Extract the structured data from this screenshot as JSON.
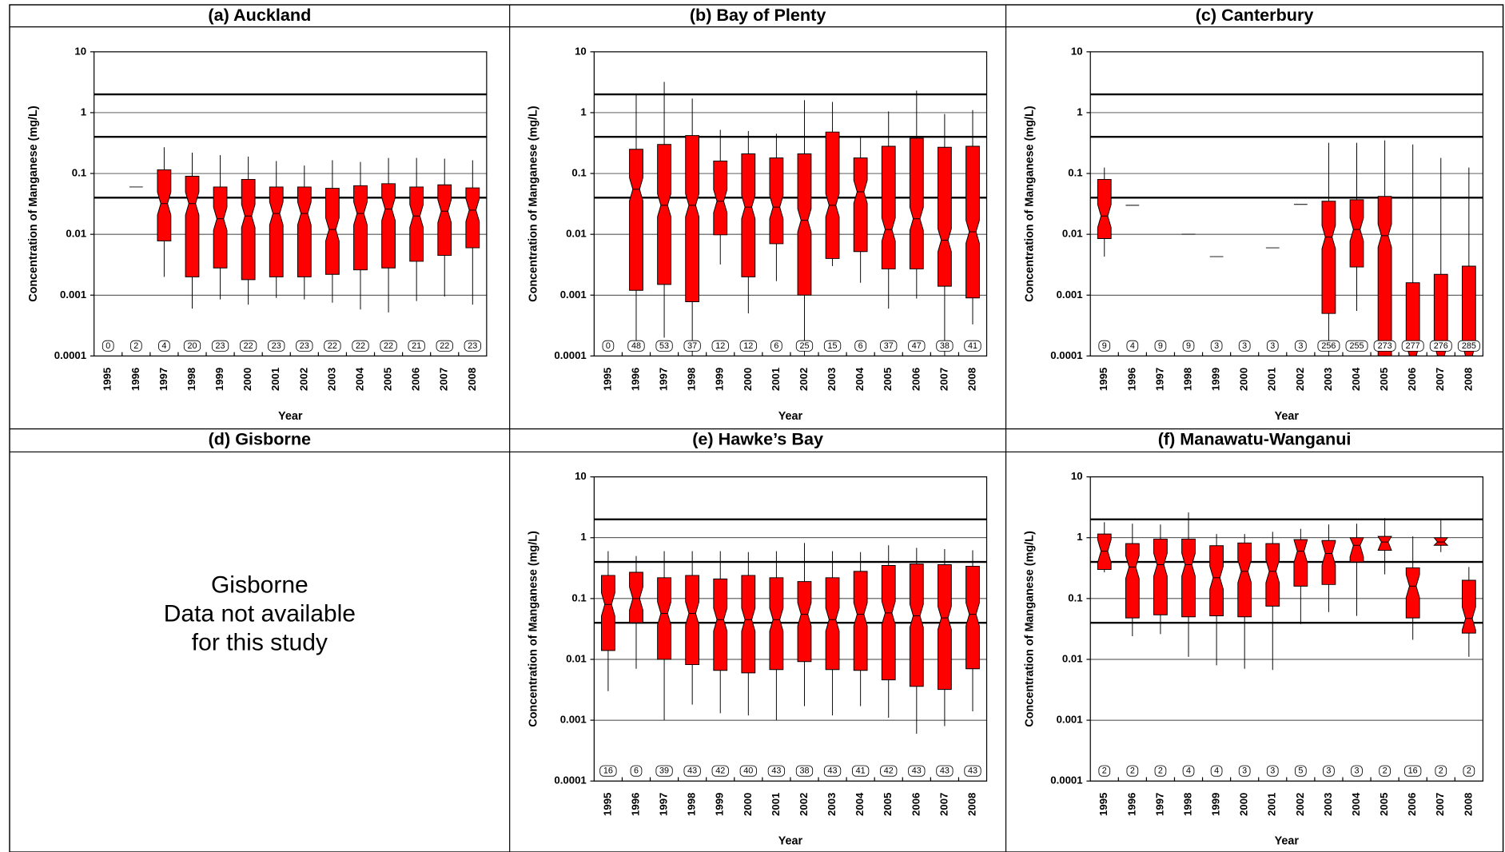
{
  "chart_data": [
    {
      "type": "box",
      "title": "(a) Auckland",
      "xlabel": "Year",
      "ylabel": "Concentration of Manganese (mg/L)",
      "log_y": true,
      "grid": true,
      "color": "#ff0000",
      "ylim": [
        0.0001,
        10
      ],
      "yticks": [
        10,
        1,
        0.1,
        0.01,
        0.001,
        0.0001
      ],
      "reference_lines": [
        2,
        0.4,
        0.04
      ],
      "categories": [
        "1995",
        "1996",
        "1997",
        "1998",
        "1999",
        "2000",
        "2001",
        "2002",
        "2003",
        "2004",
        "2005",
        "2006",
        "2007",
        "2008"
      ],
      "whisker_high": [
        null,
        null,
        0.27,
        0.22,
        0.2,
        0.19,
        0.16,
        0.135,
        0.165,
        0.155,
        0.18,
        0.18,
        0.175,
        0.165
      ],
      "q3": [
        null,
        null,
        0.115,
        0.09,
        0.06,
        0.08,
        0.06,
        0.06,
        0.057,
        0.063,
        0.068,
        0.06,
        0.065,
        0.058
      ],
      "median": [
        null,
        0.06,
        0.032,
        0.032,
        0.018,
        0.02,
        0.022,
        0.022,
        0.012,
        0.022,
        0.026,
        0.02,
        0.024,
        0.025
      ],
      "q1": [
        null,
        null,
        0.0078,
        0.002,
        0.0028,
        0.0018,
        0.002,
        0.002,
        0.0022,
        0.0026,
        0.0028,
        0.0036,
        0.0045,
        0.006
      ],
      "whisker_low": [
        null,
        null,
        0.002,
        0.0006,
        0.00085,
        0.0007,
        0.0009,
        0.00085,
        0.00075,
        0.00058,
        0.00052,
        0.0008,
        0.00095,
        0.0007
      ],
      "n": [
        0,
        2,
        4,
        20,
        23,
        22,
        23,
        23,
        22,
        22,
        22,
        21,
        22,
        23
      ]
    },
    {
      "type": "box",
      "title": "(b) Bay of Plenty",
      "xlabel": "Year",
      "ylabel": "Concentration of Manganese (mg/L)",
      "log_y": true,
      "grid": true,
      "color": "#ff0000",
      "ylim": [
        0.0001,
        10
      ],
      "yticks": [
        10,
        1,
        0.1,
        0.01,
        0.001,
        0.0001
      ],
      "reference_lines": [
        2,
        0.4,
        0.04
      ],
      "categories": [
        "1995",
        "1996",
        "1997",
        "1998",
        "1999",
        "2000",
        "2001",
        "2002",
        "2003",
        "2004",
        "2005",
        "2006",
        "2007",
        "2008"
      ],
      "whisker_high": [
        null,
        2.0,
        3.2,
        1.7,
        0.52,
        0.5,
        0.45,
        1.6,
        1.5,
        0.4,
        1.05,
        2.3,
        0.95,
        1.1
      ],
      "q3": [
        null,
        0.25,
        0.3,
        0.42,
        0.16,
        0.21,
        0.18,
        0.21,
        0.48,
        0.18,
        0.28,
        0.38,
        0.27,
        0.28
      ],
      "median": [
        null,
        0.055,
        0.03,
        0.03,
        0.035,
        0.028,
        0.028,
        0.017,
        0.03,
        0.05,
        0.012,
        0.018,
        0.008,
        0.011
      ],
      "q1": [
        null,
        0.0012,
        0.0015,
        0.00078,
        0.0098,
        0.002,
        0.007,
        0.001,
        0.004,
        0.0052,
        0.0027,
        0.0027,
        0.0014,
        0.0009
      ],
      "whisker_low": [
        null,
        0.00015,
        0.0002,
        0.0001,
        0.0032,
        0.0005,
        0.0017,
        0.0001,
        0.003,
        0.0016,
        0.0006,
        0.00088,
        0.0001,
        0.00033
      ],
      "n": [
        0,
        48,
        53,
        37,
        12,
        12,
        6,
        25,
        15,
        6,
        37,
        47,
        38,
        41
      ]
    },
    {
      "type": "box",
      "title": "(c) Canterbury",
      "xlabel": "Year",
      "ylabel": "Concentration of Manganese (mg/L)",
      "log_y": true,
      "grid": true,
      "color": "#ff0000",
      "ylim": [
        0.0001,
        10
      ],
      "yticks": [
        10,
        1,
        0.1,
        0.01,
        0.001,
        0.0001
      ],
      "reference_lines": [
        2,
        0.4,
        0.04
      ],
      "categories": [
        "1995",
        "1996",
        "1997",
        "1998",
        "1999",
        "2000",
        "2001",
        "2002",
        "2003",
        "2004",
        "2005",
        "2006",
        "2007",
        "2008"
      ],
      "whisker_high": [
        0.125,
        null,
        null,
        null,
        null,
        null,
        null,
        null,
        0.32,
        0.32,
        0.35,
        0.3,
        0.18,
        0.125
      ],
      "q3": [
        0.08,
        null,
        null,
        null,
        null,
        null,
        null,
        null,
        0.035,
        0.037,
        0.042,
        0.0016,
        0.0022,
        0.003
      ],
      "median": [
        0.02,
        0.03,
        null,
        0.01,
        0.0043,
        null,
        0.006,
        0.031,
        0.009,
        0.012,
        0.0095,
        0.0001,
        0.0001,
        0.0001
      ],
      "q1": [
        0.0085,
        null,
        null,
        null,
        null,
        null,
        null,
        null,
        0.0005,
        0.0029,
        0.0001,
        0.0001,
        0.0001,
        0.0001
      ],
      "whisker_low": [
        0.0043,
        null,
        null,
        null,
        null,
        null,
        null,
        null,
        0.0001,
        0.00055,
        0.0001,
        0.0001,
        0.0001,
        0.0001
      ],
      "n": [
        9,
        4,
        9,
        9,
        3,
        3,
        3,
        3,
        256,
        255,
        273,
        277,
        276,
        285
      ]
    },
    {
      "type": "note",
      "title": "(d) Gisborne",
      "text": [
        "Gisborne",
        "Data not available",
        "for this study"
      ]
    },
    {
      "type": "box",
      "title": "(e) Hawke’s Bay",
      "xlabel": "Year",
      "ylabel": "Concentration of Manganese (mg/L)",
      "log_y": true,
      "grid": true,
      "color": "#ff0000",
      "ylim": [
        0.0001,
        10
      ],
      "yticks": [
        10,
        1,
        0.1,
        0.01,
        0.001,
        0.0001
      ],
      "reference_lines": [
        2,
        0.4,
        0.04
      ],
      "categories": [
        "1995",
        "1996",
        "1997",
        "1998",
        "1999",
        "2000",
        "2001",
        "2002",
        "2003",
        "2004",
        "2005",
        "2006",
        "2007",
        "2008"
      ],
      "whisker_high": [
        0.6,
        0.5,
        0.6,
        0.6,
        0.6,
        0.58,
        0.6,
        0.82,
        0.6,
        0.58,
        0.75,
        0.68,
        0.65,
        0.62
      ],
      "q3": [
        0.24,
        0.27,
        0.22,
        0.24,
        0.21,
        0.24,
        0.22,
        0.19,
        0.22,
        0.28,
        0.35,
        0.37,
        0.36,
        0.34
      ],
      "median": [
        0.08,
        0.1,
        0.057,
        0.057,
        0.045,
        0.045,
        0.045,
        0.055,
        0.045,
        0.055,
        0.058,
        0.052,
        0.048,
        0.055
      ],
      "q1": [
        0.014,
        0.04,
        0.01,
        0.0082,
        0.0066,
        0.006,
        0.0068,
        0.0092,
        0.0068,
        0.0066,
        0.0046,
        0.0036,
        0.0032,
        0.007
      ],
      "whisker_low": [
        0.003,
        0.007,
        0.001,
        0.0018,
        0.0013,
        0.0012,
        0.001,
        0.0017,
        0.0012,
        0.0017,
        0.0011,
        0.0006,
        0.0008,
        0.0014
      ],
      "n": [
        16,
        6,
        39,
        43,
        42,
        40,
        43,
        38,
        43,
        41,
        42,
        43,
        43,
        43
      ]
    },
    {
      "type": "box",
      "title": "(f) Manawatu-Wanganui",
      "xlabel": "Year",
      "ylabel": "Concentration of Manganese (mg/L)",
      "log_y": true,
      "grid": true,
      "color": "#ff0000",
      "ylim": [
        0.0001,
        10
      ],
      "yticks": [
        10,
        1,
        0.1,
        0.01,
        0.001,
        0.0001
      ],
      "reference_lines": [
        2,
        0.4,
        0.04
      ],
      "categories": [
        "1995",
        "1996",
        "1997",
        "1998",
        "1999",
        "2000",
        "2001",
        "2002",
        "2003",
        "2004",
        "2005",
        "2006",
        "2007",
        "2008"
      ],
      "whisker_high": [
        1.8,
        1.7,
        1.65,
        2.6,
        1.15,
        1.15,
        1.25,
        1.4,
        1.65,
        1.7,
        2.1,
        1.05,
        2.0,
        0.33
      ],
      "q3": [
        1.15,
        0.8,
        0.95,
        0.95,
        0.74,
        0.82,
        0.8,
        0.93,
        0.9,
        1.0,
        1.05,
        0.32,
        1.0,
        0.2
      ],
      "median": [
        0.6,
        0.33,
        0.36,
        0.36,
        0.22,
        0.28,
        0.28,
        0.6,
        0.55,
        0.75,
        0.85,
        0.16,
        0.85,
        0.047
      ],
      "q1": [
        0.3,
        0.048,
        0.054,
        0.05,
        0.052,
        0.05,
        0.075,
        0.16,
        0.17,
        0.4,
        0.62,
        0.048,
        0.75,
        0.027
      ],
      "whisker_low": [
        0.27,
        0.024,
        0.026,
        0.011,
        0.008,
        0.007,
        0.0067,
        0.038,
        0.06,
        0.052,
        0.25,
        0.021,
        0.58,
        0.011
      ],
      "n": [
        2,
        2,
        2,
        4,
        4,
        3,
        3,
        5,
        3,
        3,
        2,
        16,
        2,
        2
      ]
    }
  ]
}
